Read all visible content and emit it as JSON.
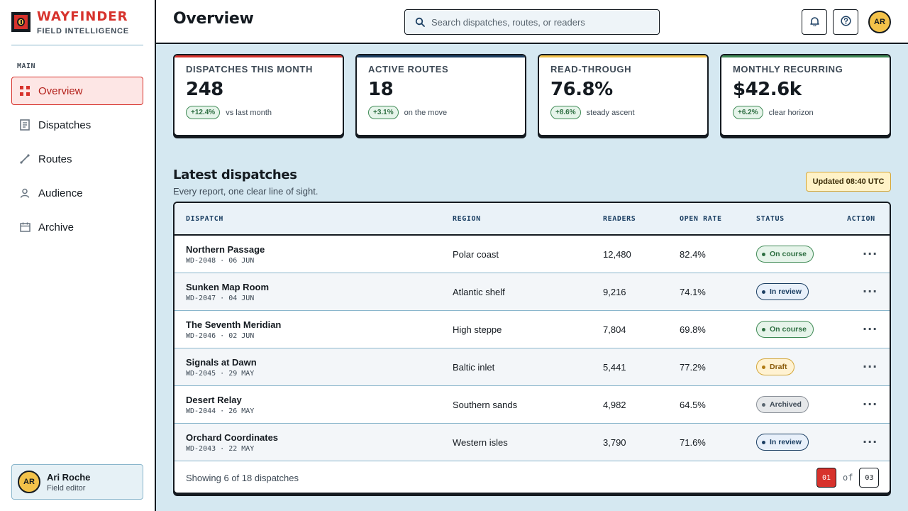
{
  "brand": {
    "name": "WAYFINDER",
    "subtitle": "FIELD INTELLIGENCE"
  },
  "sidebar": {
    "section_label": "MAIN",
    "items": [
      {
        "label": "Overview",
        "icon": "grid-icon",
        "active": true
      },
      {
        "label": "Dispatches",
        "icon": "document-icon",
        "active": false
      },
      {
        "label": "Routes",
        "icon": "route-icon",
        "active": false
      },
      {
        "label": "Audience",
        "icon": "person-icon",
        "active": false
      },
      {
        "label": "Archive",
        "icon": "calendar-icon",
        "active": false
      }
    ],
    "profile": {
      "initials": "AR",
      "name": "Ari Roche",
      "role": "Field editor"
    }
  },
  "header": {
    "title": "Overview",
    "search_placeholder": "Search dispatches, routes, or readers",
    "avatar_initials": "AR"
  },
  "stats": [
    {
      "label": "DISPATCHES THIS MONTH",
      "value": "248",
      "delta": "+12.4%",
      "note": "vs last month",
      "accent": "#d7322c"
    },
    {
      "label": "ACTIVE ROUTES",
      "value": "18",
      "delta": "+3.1%",
      "note": "on the move",
      "accent": "#1b3f63"
    },
    {
      "label": "READ-THROUGH",
      "value": "76.8%",
      "delta": "+8.6%",
      "note": "steady ascent",
      "accent": "#f3c24a"
    },
    {
      "label": "MONTHLY RECURRING",
      "value": "$42.6k",
      "delta": "+6.2%",
      "note": "clear horizon",
      "accent": "#3f8a55"
    }
  ],
  "dispatches": {
    "title": "Latest dispatches",
    "subtitle": "Every report, one clear line of sight.",
    "updated": "Updated 08:40 UTC",
    "columns": [
      "DISPATCH",
      "REGION",
      "READERS",
      "OPEN RATE",
      "STATUS",
      "ACTION"
    ],
    "rows": [
      {
        "title": "Northern Passage",
        "meta": "WD-2048 · 06 JUN",
        "region": "Polar coast",
        "readers": "12,480",
        "open_rate": "82.4%",
        "status": "On course",
        "status_kind": "green"
      },
      {
        "title": "Sunken Map Room",
        "meta": "WD-2047 · 04 JUN",
        "region": "Atlantic shelf",
        "readers": "9,216",
        "open_rate": "74.1%",
        "status": "In review",
        "status_kind": "blue"
      },
      {
        "title": "The Seventh Meridian",
        "meta": "WD-2046 · 02 JUN",
        "region": "High steppe",
        "readers": "7,804",
        "open_rate": "69.8%",
        "status": "On course",
        "status_kind": "green"
      },
      {
        "title": "Signals at Dawn",
        "meta": "WD-2045 · 29 MAY",
        "region": "Baltic inlet",
        "readers": "5,441",
        "open_rate": "77.2%",
        "status": "Draft",
        "status_kind": "amber"
      },
      {
        "title": "Desert Relay",
        "meta": "WD-2044 · 26 MAY",
        "region": "Southern sands",
        "readers": "4,982",
        "open_rate": "64.5%",
        "status": "Archived",
        "status_kind": "grey"
      },
      {
        "title": "Orchard Coordinates",
        "meta": "WD-2043 · 22 MAY",
        "region": "Western isles",
        "readers": "3,790",
        "open_rate": "71.6%",
        "status": "In review",
        "status_kind": "blue"
      }
    ],
    "action_glyph": "···",
    "footer": {
      "showing": "Showing 6 of 18 dispatches",
      "current_page": "01",
      "of_label": "of",
      "total_pages": "03"
    }
  }
}
